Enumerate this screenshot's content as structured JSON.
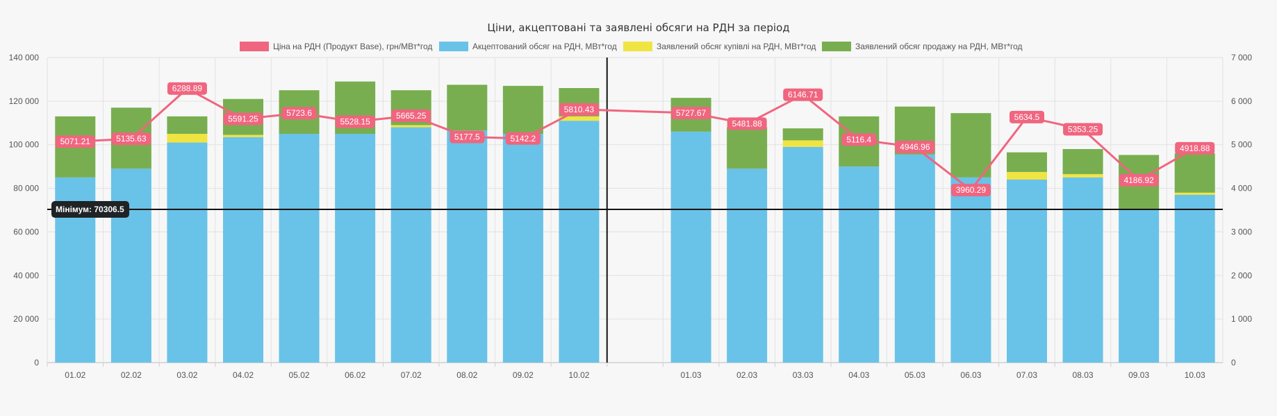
{
  "chart_data": {
    "type": "bar",
    "title": "Ціни, акцептовані та заявлені обсяги на РДН за період",
    "categories": [
      "01.02",
      "02.02",
      "03.02",
      "04.02",
      "05.02",
      "06.02",
      "07.02",
      "08.02",
      "09.02",
      "10.02",
      "",
      "01.03",
      "02.03",
      "03.03",
      "04.03",
      "05.03",
      "06.03",
      "07.03",
      "08.03",
      "09.03",
      "10.03"
    ],
    "series": [
      {
        "name": "Ціна на РДН (Продукт Base), грн/МВт*год",
        "type": "line",
        "axis": "right",
        "color": "#f0657f",
        "values": [
          5071.21,
          5135.63,
          6288.89,
          5591.25,
          5723.6,
          5528.15,
          5665.25,
          5177.5,
          5142.2,
          5810.43,
          null,
          5727.67,
          5481.88,
          6146.71,
          5116.4,
          4946.96,
          3960.29,
          5634.5,
          5353.25,
          4186.92,
          4918.88
        ]
      },
      {
        "name": "Акцептований обсяг на РДН, МВт*год",
        "type": "bar",
        "axis": "left",
        "color": "#69c2e8",
        "values": [
          85000,
          89000,
          101000,
          103500,
          105000,
          105000,
          108000,
          106500,
          105000,
          111000,
          null,
          106000,
          89000,
          99000,
          90000,
          95500,
          85000,
          84000,
          85000,
          70000,
          77000
        ]
      },
      {
        "name": "Заявлений обсяг купівлі на РДН, МВт*год",
        "type": "bar",
        "axis": "left",
        "color": "#f0e442",
        "values": [
          0,
          0,
          4000,
          1000,
          0,
          0,
          1000,
          0,
          0,
          2000,
          null,
          0,
          0,
          3000,
          0,
          0,
          0,
          3500,
          1500,
          0,
          1000
        ]
      },
      {
        "name": "Заявлений обсяг продажу на РДН, МВт*год",
        "type": "bar",
        "axis": "left",
        "color": "#78ae50",
        "values": [
          28000,
          28000,
          8000,
          16500,
          20000,
          24000,
          16000,
          21000,
          22000,
          13000,
          null,
          15500,
          19000,
          5500,
          23000,
          22000,
          29500,
          9000,
          11500,
          25300,
          18000
        ]
      }
    ],
    "price_labels": [
      "5071.21",
      "5135.63",
      "6288.89",
      "5591.25",
      "5723.6",
      "5528.15",
      "5665.25",
      "5177.5",
      "5142.2",
      "5810.43",
      "",
      "5727.67",
      "5481.88",
      "6146.71",
      "5116.4",
      "4946.96",
      "3960.29",
      "5634.5",
      "5353.25",
      "4186.92",
      "4918.88"
    ],
    "y_left": {
      "min": 0,
      "max": 140000,
      "ticks": [
        "0",
        "20 000",
        "40 000",
        "60 000",
        "80 000",
        "100 000",
        "120 000",
        "140 000"
      ]
    },
    "y_right": {
      "min": 0,
      "max": 7000,
      "ticks": [
        "0",
        "1 000",
        "2 000",
        "3 000",
        "4 000",
        "5 000",
        "6 000",
        "7 000"
      ]
    },
    "annotation": {
      "value": 70306.5,
      "label": "Мінімум: 70306.5"
    },
    "separator_after_index": 10,
    "grid": true,
    "legend_position": "top",
    "stacked": true
  }
}
